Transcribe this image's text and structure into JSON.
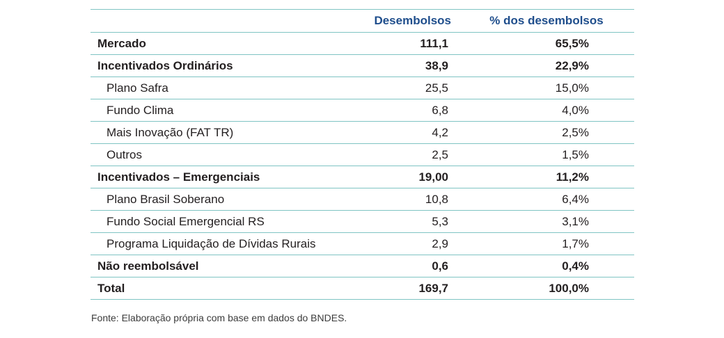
{
  "table": {
    "headers": {
      "label": "",
      "disbursements": "Desembolsos",
      "percent": "% dos desembolsos"
    },
    "rows": [
      {
        "label": "Mercado",
        "value": "111,1",
        "percent": "65,5%",
        "bold": true,
        "indent": false
      },
      {
        "label": "Incentivados Ordinários",
        "value": "38,9",
        "percent": "22,9%",
        "bold": true,
        "indent": false
      },
      {
        "label": "Plano Safra",
        "value": "25,5",
        "percent": "15,0%",
        "bold": false,
        "indent": true
      },
      {
        "label": "Fundo Clima",
        "value": "6,8",
        "percent": "4,0%",
        "bold": false,
        "indent": true
      },
      {
        "label": "Mais Inovação (FAT TR)",
        "value": "4,2",
        "percent": "2,5%",
        "bold": false,
        "indent": true
      },
      {
        "label": "Outros",
        "value": "2,5",
        "percent": "1,5%",
        "bold": false,
        "indent": true
      },
      {
        "label": "Incentivados – Emergenciais",
        "value": "19,00",
        "percent": "11,2%",
        "bold": true,
        "indent": false
      },
      {
        "label": "Plano Brasil Soberano",
        "value": "10,8",
        "percent": "6,4%",
        "bold": false,
        "indent": true
      },
      {
        "label": "Fundo Social Emergencial RS",
        "value": "5,3",
        "percent": "3,1%",
        "bold": false,
        "indent": true
      },
      {
        "label": "Programa Liquidação de Dívidas Rurais",
        "value": "2,9",
        "percent": "1,7%",
        "bold": false,
        "indent": true
      },
      {
        "label": "Não reembolsável",
        "value": "0,6",
        "percent": "0,4%",
        "bold": true,
        "indent": false
      },
      {
        "label": "Total",
        "value": "169,7",
        "percent": "100,0%",
        "bold": true,
        "indent": false
      }
    ]
  },
  "source": "Fonte: Elaboração própria com base em dados do BNDES.",
  "colors": {
    "header_text": "#1f4e8c",
    "rule": "#7fc4c3",
    "body_text": "#231f20"
  }
}
